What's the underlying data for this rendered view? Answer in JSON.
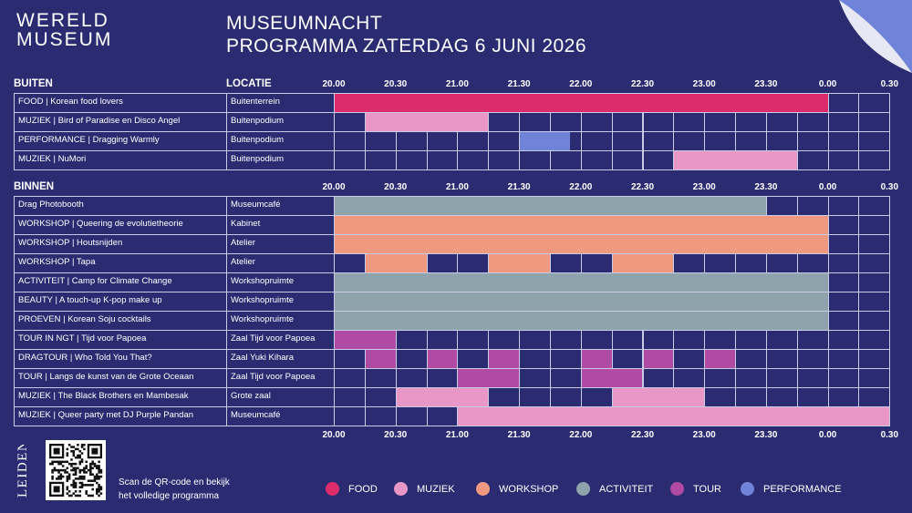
{
  "header": {
    "logo_line1": "WERELD",
    "logo_line2": "MUSEUM",
    "title_line1": "MUSEUMNACHT",
    "title_line2": "PROGRAMMA ZATERDAG 6 JUNI 2026",
    "city": "LEIDEN"
  },
  "colors": {
    "background": "#2b2b72",
    "FOOD": "#dd2c6b",
    "MUZIEK": "#e897c7",
    "WORKSHOP": "#ef9a80",
    "ACTIVITEIT": "#8fa3ad",
    "TOUR": "#b04aa3",
    "PERFORMANCE": "#6f83d8"
  },
  "times": [
    "20.00",
    "20.30",
    "21.00",
    "21.30",
    "22.00",
    "22.30",
    "23.00",
    "23.30",
    "0.00",
    "0.30"
  ],
  "sections": [
    {
      "title": "BUITEN",
      "location_header": "LOCATIE",
      "rows": [
        {
          "name": "FOOD | Korean food lovers",
          "location": "Buitenterrein",
          "category": "FOOD",
          "slots": [
            [
              0,
              16
            ]
          ]
        },
        {
          "name": "MUZIEK | Bird of Paradise en Disco Angel",
          "location": "Buitenpodium",
          "category": "MUZIEK",
          "slots": [
            [
              1,
              5
            ]
          ]
        },
        {
          "name": "PERFORMANCE | Dragging Warmly",
          "location": "Buitenpodium",
          "category": "PERFORMANCE",
          "slots": [
            [
              6,
              7.66
            ]
          ]
        },
        {
          "name": "MUZIEK | NuMori",
          "location": "Buitenpodium",
          "category": "MUZIEK",
          "slots": [
            [
              11,
              15
            ]
          ]
        }
      ]
    },
    {
      "title": "BINNEN",
      "rows": [
        {
          "name": "Drag Photobooth",
          "location": "Museumcafé",
          "category": "ACTIVITEIT",
          "slots": [
            [
              0,
              14
            ]
          ]
        },
        {
          "name": "WORKSHOP | Queering de evolutietheorie",
          "location": "Kabinet",
          "category": "WORKSHOP",
          "slots": [
            [
              0,
              16
            ]
          ]
        },
        {
          "name": "WORKSHOP | Houtsnijden",
          "location": "Atelier",
          "category": "WORKSHOP",
          "slots": [
            [
              0,
              16
            ]
          ]
        },
        {
          "name": "WORKSHOP | Tapa",
          "location": "Atelier",
          "category": "WORKSHOP",
          "slots": [
            [
              1,
              3
            ],
            [
              5,
              7
            ],
            [
              9,
              11
            ]
          ]
        },
        {
          "name": "ACTIVITEIT | Camp for Climate Change",
          "location": "Workshopruimte",
          "category": "ACTIVITEIT",
          "slots": [
            [
              0,
              16
            ]
          ]
        },
        {
          "name": "BEAUTY | A touch-up K-pop make up",
          "location": "Workshopruimte",
          "category": "ACTIVITEIT",
          "slots": [
            [
              0,
              16
            ]
          ]
        },
        {
          "name": "PROEVEN | Korean Soju cocktails",
          "location": "Workshopruimte",
          "category": "ACTIVITEIT",
          "slots": [
            [
              0,
              16
            ]
          ]
        },
        {
          "name": "TOUR IN NGT | Tijd voor Papoea",
          "location": "Zaal Tijd voor Papoea",
          "category": "TOUR",
          "slots": [
            [
              0,
              2
            ]
          ]
        },
        {
          "name": "DRAGTOUR | Who Told You That?",
          "location": "Zaal Yuki Kihara",
          "category": "TOUR",
          "slots": [
            [
              1,
              2
            ],
            [
              3,
              4
            ],
            [
              5,
              6
            ],
            [
              8,
              9
            ],
            [
              10,
              11
            ],
            [
              12,
              13
            ]
          ]
        },
        {
          "name": "TOUR | Langs de kunst van de Grote Oceaan",
          "location": "Zaal Tijd voor Papoea",
          "category": "TOUR",
          "slots": [
            [
              4,
              6
            ],
            [
              8,
              10
            ]
          ]
        },
        {
          "name": "MUZIEK | The Black Brothers en Mambesak",
          "location": "Grote zaal",
          "category": "MUZIEK",
          "slots": [
            [
              2,
              5
            ],
            [
              9,
              12
            ]
          ]
        },
        {
          "name": "MUZIEK | Queer party met DJ Purple Pandan",
          "location": "Museumcafé",
          "category": "MUZIEK",
          "slots": [
            [
              4,
              18
            ]
          ]
        }
      ]
    }
  ],
  "footer": {
    "qr_line1": "Scan de QR-code en bekijk",
    "qr_line2": "het volledige programma"
  },
  "legend": [
    {
      "label": "FOOD",
      "icon": "circle"
    },
    {
      "label": "MUZIEK",
      "icon": "circle"
    },
    {
      "label": "WORKSHOP",
      "icon": "circle"
    },
    {
      "label": "ACTIVITEIT",
      "icon": "circle"
    },
    {
      "label": "TOUR",
      "icon": "circle"
    },
    {
      "label": "PERFORMANCE",
      "icon": "circle"
    }
  ]
}
